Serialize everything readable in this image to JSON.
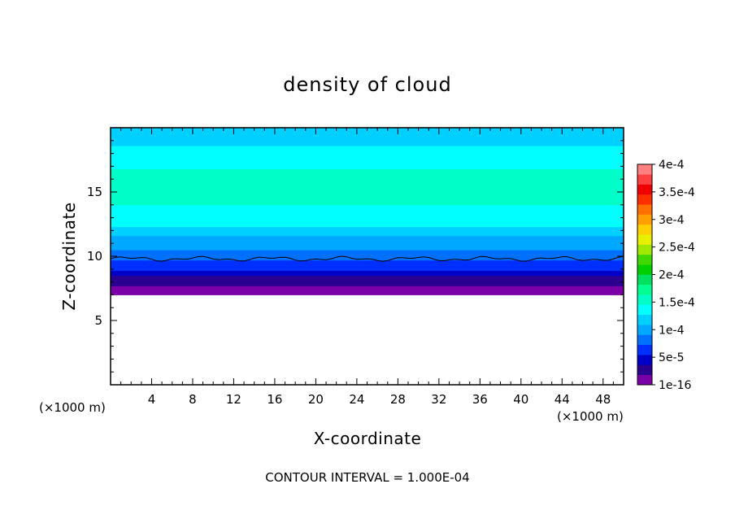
{
  "chart_data": {
    "type": "heatmap",
    "title": "density of cloud",
    "xlabel": "X-coordinate",
    "ylabel": "Z-coordinate",
    "x_unit": "(×1000 m)",
    "z_unit": "(×1000 m)",
    "footer": "CONTOUR INTERVAL = 1.000E-04",
    "xlim": [
      0,
      50
    ],
    "ylim": [
      0,
      20
    ],
    "x_ticks": [
      "4",
      "8",
      "12",
      "16",
      "20",
      "24",
      "28",
      "32",
      "36",
      "40",
      "44",
      "48"
    ],
    "x_tick_values": [
      4,
      8,
      12,
      16,
      20,
      24,
      28,
      32,
      36,
      40,
      44,
      48
    ],
    "y_ticks": [
      "5",
      "10",
      "15"
    ],
    "y_tick_values": [
      5,
      10,
      15
    ],
    "cloud_base_z": 7.0,
    "contour_line_z": 9.8,
    "colorbar": {
      "labels": [
        "1e-16",
        "5e-5",
        "1e-4",
        "1.5e-4",
        "2e-4",
        "2.5e-4",
        "3e-4",
        "3.5e-4",
        "4e-4"
      ],
      "levels": [
        1e-16,
        5e-05,
        0.0001,
        0.00015,
        0.0002,
        0.00025,
        0.0003,
        0.00035,
        0.0004
      ],
      "colors": [
        "#7b00a8",
        "#2a0090",
        "#0000c8",
        "#0030ff",
        "#0070ff",
        "#00a8ff",
        "#00d0ff",
        "#00ffff",
        "#00ffc8",
        "#00ff90",
        "#00e060",
        "#00d000",
        "#40d800",
        "#a0e800",
        "#e8f000",
        "#ffd000",
        "#ffa000",
        "#ff7000",
        "#ff3000",
        "#f00000",
        "#ff4040",
        "#ff8080"
      ]
    },
    "profile": {
      "z": [
        7.0,
        7.3,
        7.7,
        8.1,
        8.5,
        8.9,
        9.3,
        9.7,
        10.1,
        10.5,
        11.0,
        11.6,
        12.3,
        13.2,
        14.0,
        16.8,
        17.6,
        18.6,
        20.0
      ],
      "value": [
        2e-06,
        1.5e-05,
        2.5e-05,
        3.5e-05,
        4.6e-05,
        5.5e-05,
        6.5e-05,
        7.5e-05,
        8.5e-05,
        9.3e-05,
        0.000105,
        0.000112,
        0.00013,
        0.000142,
        0.000155,
        0.000142,
        0.000128,
        0.000112,
        0.000105
      ]
    }
  }
}
